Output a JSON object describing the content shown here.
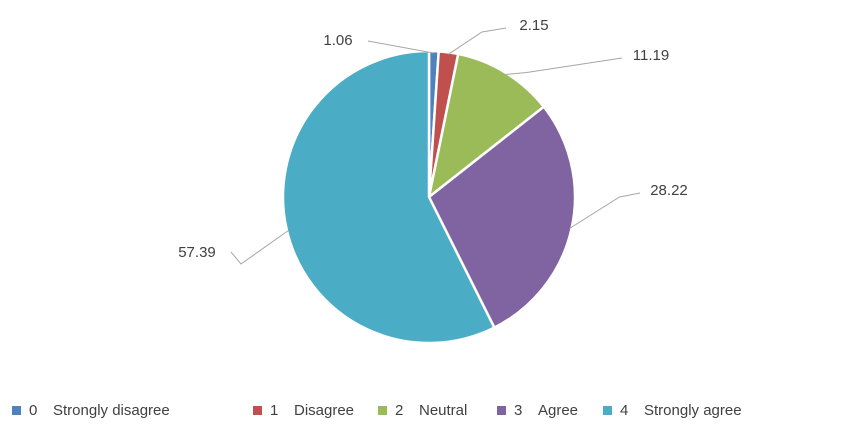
{
  "chart_data": {
    "type": "pie",
    "title": "",
    "legend_position": "bottom",
    "slices": [
      {
        "code": "0",
        "label": "Strongly disagree",
        "value": 1.06,
        "color": "#4F81BD"
      },
      {
        "code": "1",
        "label": "Disagree",
        "value": 2.15,
        "color": "#C0504D"
      },
      {
        "code": "2",
        "label": "Neutral",
        "value": 11.19,
        "color": "#9BBB59"
      },
      {
        "code": "3",
        "label": "Agree",
        "value": 28.22,
        "color": "#8064A2"
      },
      {
        "code": "4",
        "label": "Strongly agree",
        "value": 57.39,
        "color": "#4BACC6"
      }
    ]
  }
}
